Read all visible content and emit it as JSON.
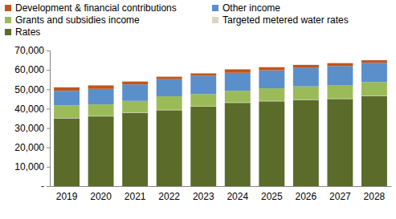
{
  "chart_data": {
    "type": "bar",
    "stacked": true,
    "legend": "top",
    "grid": false,
    "categories": [
      "2019",
      "2020",
      "2021",
      "2022",
      "2023",
      "2024",
      "2025",
      "2026",
      "2027",
      "2028"
    ],
    "ylim": [
      0,
      70000
    ],
    "yticks": [
      {
        "value": 0,
        "label": "-"
      },
      {
        "value": 10000,
        "label": "10,000"
      },
      {
        "value": 20000,
        "label": "20,000"
      },
      {
        "value": 30000,
        "label": "30,000"
      },
      {
        "value": 40000,
        "label": "40,000"
      },
      {
        "value": 50000,
        "label": "50,000"
      },
      {
        "value": 60000,
        "label": "60,000"
      },
      {
        "value": 70000,
        "label": "70,000"
      }
    ],
    "series": [
      {
        "name": "Rates",
        "color": "#5a6b2a",
        "values": [
          35000,
          36000,
          37800,
          39200,
          41000,
          43000,
          43800,
          44500,
          45000,
          46500
        ]
      },
      {
        "name": "Targeted metered water rates",
        "color": "#d9d5c1",
        "values": [
          200,
          200,
          200,
          200,
          200,
          200,
          200,
          200,
          200,
          200
        ]
      },
      {
        "name": "Grants and subsidies income",
        "color": "#9bbb59",
        "values": [
          6500,
          6000,
          6000,
          7000,
          6300,
          6000,
          6500,
          6800,
          7000,
          7000
        ]
      },
      {
        "name": "Other income",
        "color": "#5b8fc9",
        "values": [
          7500,
          8000,
          8500,
          8800,
          9500,
          9300,
          9300,
          9500,
          9800,
          10000
        ]
      },
      {
        "name": "Development & financial contributions",
        "color": "#c0561a",
        "values": [
          1800,
          1800,
          1500,
          1300,
          1200,
          1800,
          1600,
          1600,
          1500,
          1300
        ]
      }
    ]
  }
}
